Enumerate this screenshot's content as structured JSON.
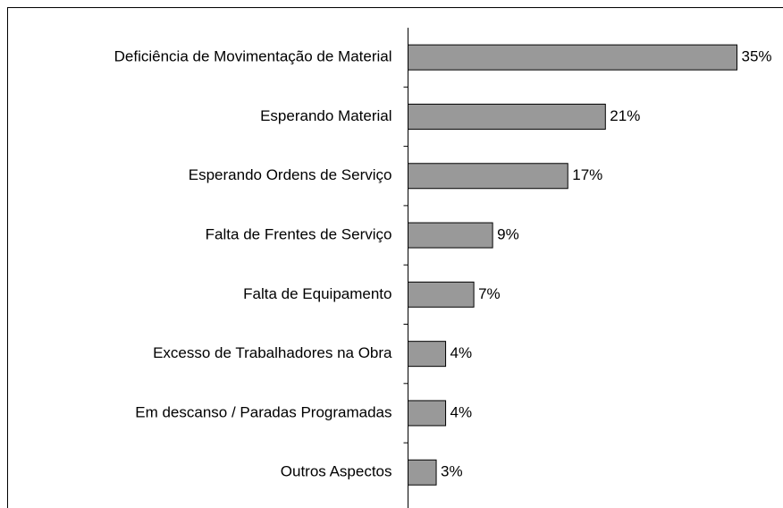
{
  "chart_data": {
    "type": "bar",
    "orientation": "horizontal",
    "categories": [
      "Deficiência de Movimentação de Material",
      "Esperando Material",
      "Esperando Ordens de Serviço",
      "Falta de Frentes de Serviço",
      "Falta de Equipamento",
      "Excesso de Trabalhadores na Obra",
      "Em descanso / Paradas Programadas",
      "Outros Aspectos"
    ],
    "values": [
      35,
      21,
      17,
      9,
      7,
      4,
      4,
      3
    ],
    "value_labels": [
      "35%",
      "21%",
      "17%",
      "9%",
      "7%",
      "4%",
      "4%",
      "3%"
    ],
    "color": "#999999"
  }
}
